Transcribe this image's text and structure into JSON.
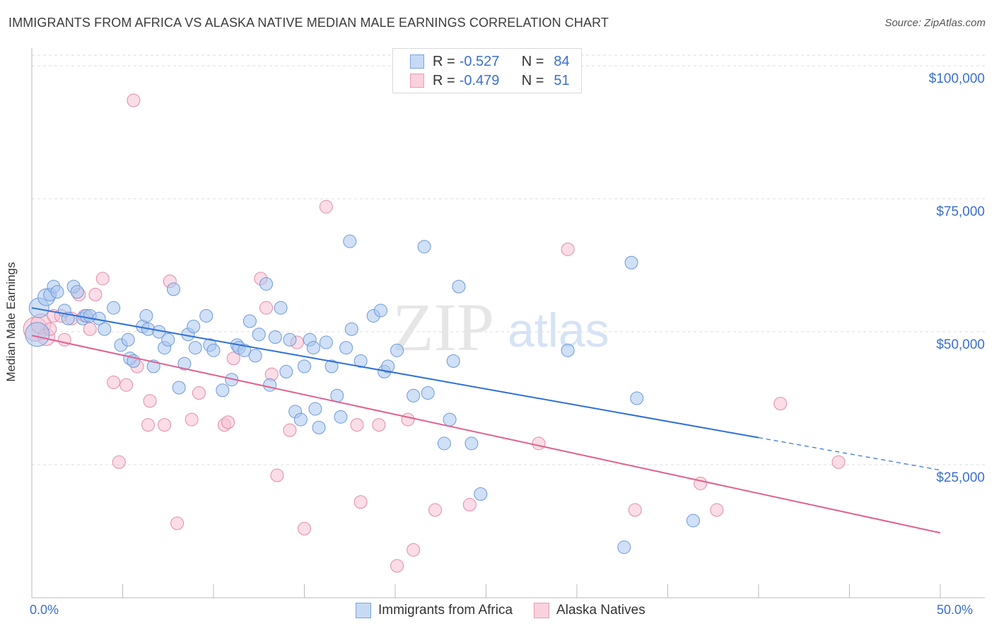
{
  "title": "IMMIGRANTS FROM AFRICA VS ALASKA NATIVE MEDIAN MALE EARNINGS CORRELATION CHART",
  "source": "Source: ZipAtlas.com",
  "watermark": {
    "zip": "ZIP",
    "atlas": "atlas"
  },
  "legend_top": [
    {
      "r_label": "R =",
      "r_value": "-0.527",
      "n_label": "N =",
      "n_value": "84"
    },
    {
      "r_label": "R =",
      "r_value": "-0.479",
      "n_label": "N =",
      "n_value": "51"
    }
  ],
  "legend_bottom": [
    "Immigrants from Africa",
    "Alaska Natives"
  ],
  "colors": {
    "blue_fill": "#a9c7ef",
    "blue_stroke": "#6e9ad8",
    "blue_line": "#2f6fd6",
    "pink_fill": "#f6c1d1",
    "pink_stroke": "#e58aa8",
    "pink_line": "#e0608e",
    "tick_text": "#3a6fd0",
    "grid": "#dcdcdc"
  },
  "chart_data": {
    "type": "scatter",
    "title": "IMMIGRANTS FROM AFRICA VS ALASKA NATIVE MEDIAN MALE EARNINGS CORRELATION CHART",
    "xlabel": "",
    "ylabel": "Median Male Earnings",
    "xlim": [
      0,
      50
    ],
    "ylim": [
      0,
      102000
    ],
    "x_tick_labels": [
      "0.0%",
      "50.0%"
    ],
    "y_ticks": [
      25000,
      50000,
      75000,
      100000
    ],
    "y_tick_labels": [
      "$25,000",
      "$50,000",
      "$75,000",
      "$100,000"
    ],
    "series": [
      {
        "name": "Immigrants from Africa",
        "R": -0.527,
        "N": 84,
        "trend": {
          "x_start": 0,
          "y_start": 54500,
          "x_solid_end": 40,
          "y_solid_end": 30100,
          "x_end": 50,
          "y_end": 24000
        },
        "points": [
          [
            0.3,
            49500
          ],
          [
            0.4,
            54500
          ],
          [
            0.8,
            56500
          ],
          [
            1.0,
            57000
          ],
          [
            1.2,
            58500
          ],
          [
            1.4,
            57500
          ],
          [
            1.8,
            54000
          ],
          [
            2.0,
            52500
          ],
          [
            2.3,
            58500
          ],
          [
            2.5,
            57500
          ],
          [
            2.8,
            52500
          ],
          [
            3.0,
            53000
          ],
          [
            3.2,
            53000
          ],
          [
            3.7,
            52500
          ],
          [
            4.0,
            50500
          ],
          [
            4.5,
            54500
          ],
          [
            4.9,
            47500
          ],
          [
            5.3,
            48500
          ],
          [
            5.4,
            45000
          ],
          [
            5.6,
            44500
          ],
          [
            6.1,
            51000
          ],
          [
            6.3,
            53000
          ],
          [
            6.4,
            50500
          ],
          [
            6.7,
            43500
          ],
          [
            7.0,
            50000
          ],
          [
            7.3,
            47000
          ],
          [
            7.5,
            48500
          ],
          [
            7.8,
            58000
          ],
          [
            8.1,
            39500
          ],
          [
            8.4,
            44000
          ],
          [
            8.6,
            49500
          ],
          [
            8.9,
            51000
          ],
          [
            9.0,
            47000
          ],
          [
            9.6,
            53000
          ],
          [
            9.8,
            47500
          ],
          [
            10.0,
            46500
          ],
          [
            10.5,
            39000
          ],
          [
            11.0,
            41000
          ],
          [
            11.3,
            47500
          ],
          [
            11.4,
            47000
          ],
          [
            11.7,
            46500
          ],
          [
            12.0,
            52000
          ],
          [
            12.3,
            45500
          ],
          [
            12.5,
            49500
          ],
          [
            12.9,
            59000
          ],
          [
            13.1,
            40000
          ],
          [
            13.4,
            49000
          ],
          [
            13.7,
            54500
          ],
          [
            14.0,
            42500
          ],
          [
            14.2,
            48500
          ],
          [
            14.5,
            35000
          ],
          [
            14.8,
            33500
          ],
          [
            15.0,
            43500
          ],
          [
            15.3,
            48500
          ],
          [
            15.5,
            47000
          ],
          [
            15.6,
            35500
          ],
          [
            15.8,
            32000
          ],
          [
            16.2,
            48000
          ],
          [
            16.5,
            43500
          ],
          [
            16.8,
            38000
          ],
          [
            17.0,
            34000
          ],
          [
            17.3,
            47000
          ],
          [
            17.5,
            67000
          ],
          [
            17.6,
            50500
          ],
          [
            18.1,
            44500
          ],
          [
            18.8,
            53000
          ],
          [
            19.2,
            54000
          ],
          [
            19.4,
            42500
          ],
          [
            19.6,
            43500
          ],
          [
            20.1,
            46500
          ],
          [
            21.0,
            38000
          ],
          [
            21.6,
            66000
          ],
          [
            21.8,
            38500
          ],
          [
            22.7,
            29000
          ],
          [
            23.0,
            33500
          ],
          [
            23.2,
            44500
          ],
          [
            23.5,
            58500
          ],
          [
            24.2,
            29000
          ],
          [
            24.7,
            19500
          ],
          [
            29.5,
            46500
          ],
          [
            32.6,
            9500
          ],
          [
            33.0,
            63000
          ],
          [
            33.3,
            37500
          ],
          [
            36.4,
            14500
          ]
        ]
      },
      {
        "name": "Alaska Natives",
        "R": -0.479,
        "N": 51,
        "trend": {
          "x_start": 0,
          "y_start": 49300,
          "x_end": 50,
          "y_end": 12200
        },
        "points": [
          [
            0.2,
            50500
          ],
          [
            0.5,
            51500
          ],
          [
            0.8,
            49000
          ],
          [
            1.0,
            50500
          ],
          [
            1.2,
            53000
          ],
          [
            1.6,
            53000
          ],
          [
            1.8,
            48500
          ],
          [
            2.2,
            52500
          ],
          [
            2.6,
            57000
          ],
          [
            2.9,
            53000
          ],
          [
            3.2,
            50500
          ],
          [
            3.5,
            57000
          ],
          [
            3.9,
            60000
          ],
          [
            4.5,
            40500
          ],
          [
            4.8,
            25500
          ],
          [
            5.2,
            40000
          ],
          [
            5.6,
            93500
          ],
          [
            5.8,
            43500
          ],
          [
            6.4,
            32500
          ],
          [
            6.5,
            37000
          ],
          [
            7.3,
            32500
          ],
          [
            7.6,
            59500
          ],
          [
            8.0,
            14000
          ],
          [
            8.8,
            33500
          ],
          [
            9.2,
            38500
          ],
          [
            10.6,
            32500
          ],
          [
            10.8,
            33000
          ],
          [
            11.1,
            45000
          ],
          [
            12.6,
            60000
          ],
          [
            12.9,
            54500
          ],
          [
            13.2,
            42000
          ],
          [
            13.5,
            23000
          ],
          [
            14.2,
            31500
          ],
          [
            14.6,
            48000
          ],
          [
            15.0,
            13000
          ],
          [
            16.2,
            73500
          ],
          [
            17.9,
            32500
          ],
          [
            18.1,
            18000
          ],
          [
            19.1,
            32500
          ],
          [
            20.1,
            6000
          ],
          [
            20.7,
            33500
          ],
          [
            21.0,
            9000
          ],
          [
            22.2,
            16500
          ],
          [
            24.1,
            17500
          ],
          [
            27.9,
            29000
          ],
          [
            29.5,
            65500
          ],
          [
            33.2,
            16500
          ],
          [
            36.8,
            21500
          ],
          [
            37.7,
            16500
          ],
          [
            41.2,
            36500
          ],
          [
            44.4,
            25500
          ]
        ]
      }
    ]
  }
}
